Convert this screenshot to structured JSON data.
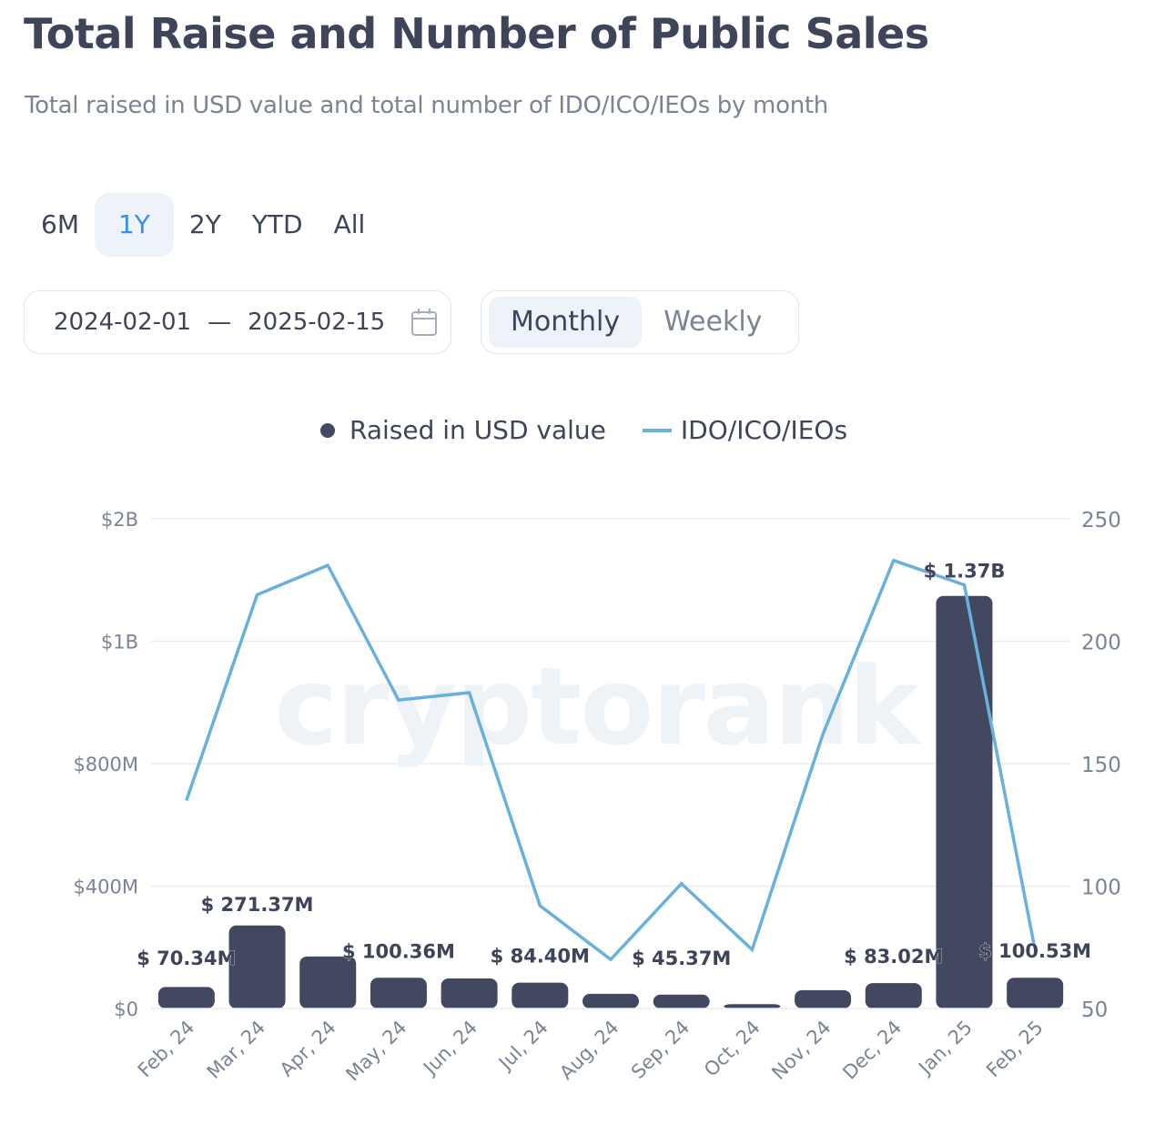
{
  "header": {
    "title": "Total Raise and Number of Public Sales",
    "subtitle": "Total raised in USD value and total number of IDO/ICO/IEOs by month"
  },
  "period_tabs": [
    {
      "label": "6M",
      "active": false
    },
    {
      "label": "1Y",
      "active": true
    },
    {
      "label": "2Y",
      "active": false
    },
    {
      "label": "YTD",
      "active": false
    },
    {
      "label": "All",
      "active": false
    }
  ],
  "date_range": {
    "start": "2024-02-01",
    "separator": "—",
    "end": "2025-02-15",
    "icon": "calendar-icon"
  },
  "grouping": [
    {
      "label": "Monthly",
      "active": true
    },
    {
      "label": "Weekly",
      "active": false
    }
  ],
  "colors": {
    "bar": "#414860",
    "line": "#6ab0dc",
    "active_tab_text": "#3a8ee6",
    "grid": "#eceef1",
    "axis_text": "#7a8494"
  },
  "chart_data": {
    "type": "bar+line",
    "watermark": "cryptorank",
    "categories": [
      "Feb, 24",
      "Mar, 24",
      "Apr, 24",
      "May, 24",
      "Jun, 24",
      "Jul, 24",
      "Aug, 24",
      "Sep, 24",
      "Oct, 24",
      "Nov, 24",
      "Dec, 24",
      "Jan, 25",
      "Feb, 25"
    ],
    "legend": [
      {
        "label": "Raised in USD value",
        "marker": "dot"
      },
      {
        "label": "IDO/ICO/IEOs",
        "marker": "line"
      }
    ],
    "legend_position": "top-center",
    "left_axis": {
      "ticks": [
        0,
        400000000,
        800000000,
        1000000000,
        2000000000
      ],
      "tick_labels": [
        "$0",
        "$400M",
        "$800M",
        "$1B",
        "$2B"
      ]
    },
    "right_axis": {
      "ylim": [
        50,
        250
      ],
      "ticks": [
        50,
        100,
        150,
        200,
        250
      ],
      "tick_labels": [
        "50",
        "100",
        "150",
        "200",
        "250"
      ]
    },
    "grid": true,
    "series": [
      {
        "name": "Raised in USD value",
        "type": "bar",
        "axis": "left",
        "values": [
          70340000,
          271370000,
          170000000,
          100360000,
          98000000,
          84400000,
          48000000,
          45370000,
          14000000,
          60000000,
          83020000,
          1370000000,
          100530000
        ],
        "data_labels": [
          "$ 70.34M",
          "$ 271.37M",
          null,
          "$ 100.36M",
          null,
          "$ 84.40M",
          null,
          "$ 45.37M",
          null,
          null,
          "$ 83.02M",
          "$ 1.37B",
          "$ 100.53M"
        ]
      },
      {
        "name": "IDO/ICO/IEOs",
        "type": "line",
        "axis": "right",
        "values": [
          135,
          219,
          231,
          176,
          179,
          92,
          70,
          101,
          74,
          162,
          233,
          223,
          74
        ]
      }
    ]
  }
}
